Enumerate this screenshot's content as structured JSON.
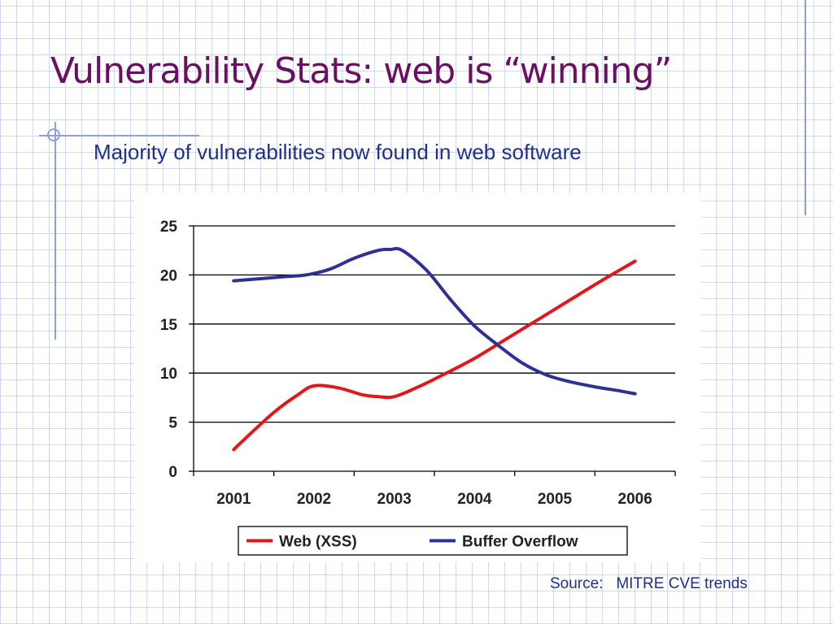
{
  "slide": {
    "title": "Vulnerability Stats:  web is “winning”",
    "subtitle": "Majority of vulnerabilities now found in web software",
    "source": "Source:   MITRE CVE trends"
  },
  "colors": {
    "title": "#6b0f63",
    "text": "#1f2f8c",
    "web": "#e3161b",
    "buffer": "#2e3192",
    "decor": "#8ea0dc"
  },
  "chart_data": {
    "type": "line",
    "categories": [
      "2001",
      "2002",
      "2003",
      "2004",
      "2005",
      "2006"
    ],
    "ylim": [
      0,
      25
    ],
    "yticks": [
      0,
      5,
      10,
      15,
      20,
      25
    ],
    "grid": true,
    "legend_position": "bottom",
    "series": [
      {
        "name": "Web (XSS)",
        "color": "#e3161b",
        "x": [
          2001,
          2001.1,
          2001.5,
          2001.8,
          2002.0,
          2002.3,
          2002.6,
          2002.8,
          2003.0,
          2003.3,
          2003.6,
          2004.0,
          2004.4,
          2004.8,
          2005.2,
          2005.6,
          2006.0
        ],
        "values": [
          2.2,
          3.0,
          6.0,
          7.8,
          8.7,
          8.5,
          7.8,
          7.6,
          7.6,
          8.6,
          9.8,
          11.5,
          13.5,
          15.5,
          17.5,
          19.5,
          21.4
        ]
      },
      {
        "name": "Buffer Overflow",
        "color": "#2e3192",
        "x": [
          2001,
          2001.3,
          2001.6,
          2001.9,
          2002.2,
          2002.5,
          2002.8,
          2002.95,
          2003.1,
          2003.4,
          2003.7,
          2004.0,
          2004.3,
          2004.6,
          2004.9,
          2005.2,
          2005.5,
          2005.8,
          2006.0
        ],
        "values": [
          19.4,
          19.6,
          19.8,
          20.0,
          20.6,
          21.7,
          22.5,
          22.6,
          22.5,
          20.5,
          17.5,
          14.8,
          12.8,
          11.0,
          9.8,
          9.1,
          8.6,
          8.2,
          7.9
        ]
      }
    ]
  }
}
